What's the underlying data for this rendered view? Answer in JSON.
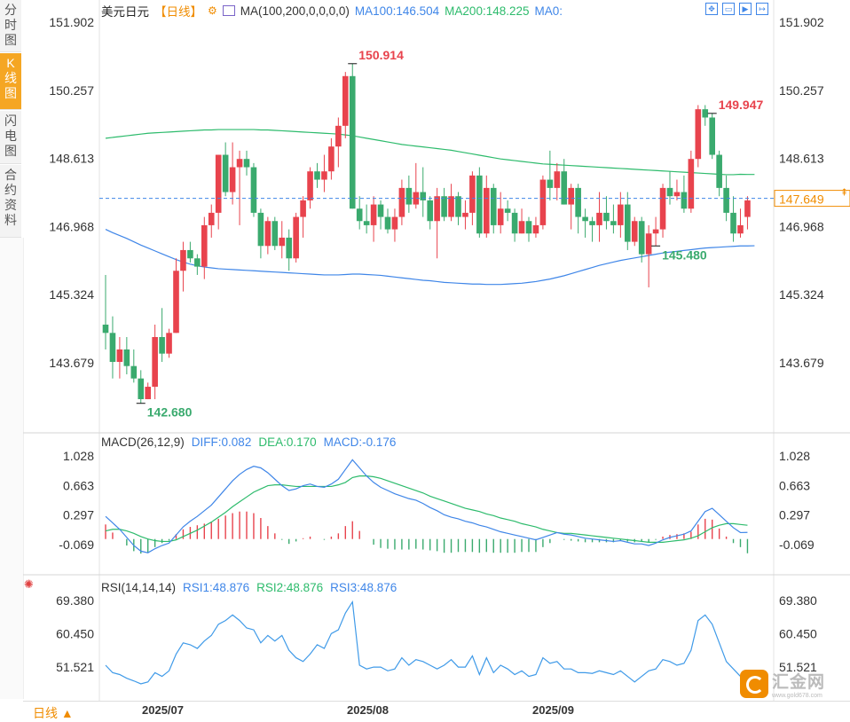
{
  "sidebar": {
    "tabs": [
      "分时图",
      "K线图",
      "闪电图",
      "合约资料"
    ],
    "active_index": 1
  },
  "header": {
    "title": "美元日元",
    "period": "【日线】",
    "ma_label": "MA(100,200,0,0,0,0)",
    "ma100": "MA100:146.504",
    "ma200": "MA200:148.225",
    "ma0": "MA0:"
  },
  "toolbar": {
    "icons": [
      "move-icon",
      "zoom-out-icon",
      "play-icon",
      "forward-icon"
    ]
  },
  "macd_header": {
    "label": "MACD(26,12,9)",
    "diff": "DIFF:0.082",
    "dea": "DEA:0.170",
    "macd": "MACD:-0.176"
  },
  "rsi_header": {
    "label": "RSI(14,14,14)",
    "rsi1": "RSI1:48.876",
    "rsi2": "RSI2:48.876",
    "rsi3": "RSI3:48.876"
  },
  "bottom": {
    "period_button": "日线 ▲",
    "dates": [
      "2025/07",
      "2025/08",
      "2025/09"
    ]
  },
  "logo": {
    "text": "汇金网",
    "sub": "www.gold678.com"
  },
  "colors": {
    "up": "#e8434d",
    "down": "#3aaa6e",
    "ma100": "#3f86e8",
    "ma200": "#2dbb6c",
    "accent": "#f08c00"
  },
  "chart_data": [
    {
      "type": "candlestick",
      "title": "美元日元",
      "yticks": [
        151.902,
        150.257,
        148.613,
        146.968,
        145.324,
        143.679
      ],
      "ylim": [
        142.3,
        152.0
      ],
      "current_price": 147.649,
      "annotations": [
        {
          "label": "150.914",
          "type": "high",
          "index": 35
        },
        {
          "label": "149.947",
          "type": "high",
          "index": 86
        },
        {
          "label": "145.480",
          "type": "low",
          "index": 78
        },
        {
          "label": "142.680",
          "type": "low",
          "index": 5
        }
      ],
      "ohlc": [
        [
          144.6,
          145.8,
          144.0,
          144.4
        ],
        [
          144.4,
          144.8,
          143.3,
          143.7
        ],
        [
          143.7,
          144.3,
          143.3,
          144.0
        ],
        [
          144.0,
          144.3,
          143.4,
          143.6
        ],
        [
          143.6,
          144.0,
          143.2,
          143.3
        ],
        [
          143.3,
          143.5,
          142.7,
          142.8
        ],
        [
          142.8,
          143.2,
          142.8,
          143.1
        ],
        [
          143.1,
          144.6,
          142.8,
          144.3
        ],
        [
          144.3,
          145.0,
          143.7,
          143.9
        ],
        [
          143.9,
          144.5,
          143.8,
          144.4
        ],
        [
          144.4,
          146.2,
          144.4,
          145.9
        ],
        [
          145.9,
          146.6,
          145.4,
          146.4
        ],
        [
          146.4,
          146.6,
          146.1,
          146.2
        ],
        [
          146.2,
          146.3,
          145.8,
          146.0
        ],
        [
          146.0,
          147.2,
          145.7,
          147.0
        ],
        [
          147.0,
          147.5,
          146.7,
          147.3
        ],
        [
          147.3,
          148.7,
          146.9,
          148.7
        ],
        [
          148.7,
          149.0,
          147.7,
          147.8
        ],
        [
          147.8,
          149.0,
          147.5,
          148.4
        ],
        [
          148.4,
          148.8,
          147.0,
          148.6
        ],
        [
          148.6,
          148.8,
          148.2,
          148.4
        ],
        [
          148.4,
          148.5,
          147.2,
          147.3
        ],
        [
          147.3,
          147.4,
          146.2,
          146.5
        ],
        [
          146.5,
          147.2,
          146.3,
          147.1
        ],
        [
          147.1,
          147.2,
          146.4,
          146.5
        ],
        [
          146.5,
          147.1,
          146.2,
          146.7
        ],
        [
          146.7,
          146.9,
          145.9,
          146.2
        ],
        [
          146.2,
          147.3,
          146.1,
          147.2
        ],
        [
          147.2,
          147.7,
          146.7,
          147.6
        ],
        [
          147.6,
          148.4,
          147.4,
          148.3
        ],
        [
          148.3,
          148.5,
          147.9,
          148.1
        ],
        [
          148.1,
          148.7,
          147.8,
          148.3
        ],
        [
          148.3,
          149.1,
          148.1,
          148.9
        ],
        [
          148.9,
          149.6,
          148.4,
          149.4
        ],
        [
          149.4,
          150.7,
          149.1,
          150.6
        ],
        [
          150.6,
          150.9,
          147.4,
          147.4
        ],
        [
          147.4,
          147.7,
          146.9,
          147.1
        ],
        [
          147.1,
          147.5,
          146.8,
          147.0
        ],
        [
          147.0,
          147.7,
          146.6,
          147.5
        ],
        [
          147.5,
          147.6,
          146.9,
          147.2
        ],
        [
          147.2,
          147.4,
          146.8,
          146.9
        ],
        [
          146.9,
          147.4,
          146.6,
          147.2
        ],
        [
          147.2,
          148.1,
          147.0,
          147.9
        ],
        [
          147.9,
          148.2,
          147.3,
          147.5
        ],
        [
          147.5,
          148.5,
          147.4,
          147.8
        ],
        [
          147.8,
          148.4,
          147.2,
          147.6
        ],
        [
          147.6,
          147.7,
          146.9,
          147.1
        ],
        [
          147.1,
          147.9,
          146.2,
          147.7
        ],
        [
          147.7,
          147.9,
          147.1,
          147.2
        ],
        [
          147.2,
          148.0,
          147.1,
          147.7
        ],
        [
          147.7,
          147.8,
          147.0,
          147.2
        ],
        [
          147.2,
          147.6,
          146.9,
          147.3
        ],
        [
          147.3,
          148.3,
          147.0,
          148.2
        ],
        [
          148.2,
          148.4,
          146.7,
          146.8
        ],
        [
          146.8,
          148.2,
          146.7,
          147.9
        ],
        [
          147.9,
          148.0,
          146.8,
          147.0
        ],
        [
          147.0,
          147.8,
          146.8,
          147.4
        ],
        [
          147.4,
          147.6,
          147.1,
          147.3
        ],
        [
          147.3,
          147.4,
          146.6,
          146.8
        ],
        [
          146.8,
          147.4,
          146.8,
          147.1
        ],
        [
          147.1,
          147.2,
          146.6,
          146.8
        ],
        [
          146.8,
          147.2,
          146.7,
          147.0
        ],
        [
          147.0,
          148.2,
          146.9,
          148.1
        ],
        [
          148.1,
          148.8,
          147.6,
          147.9
        ],
        [
          147.9,
          148.5,
          147.6,
          148.3
        ],
        [
          148.3,
          148.6,
          147.5,
          147.5
        ],
        [
          147.5,
          148.0,
          146.9,
          147.9
        ],
        [
          147.9,
          148.0,
          146.8,
          147.2
        ],
        [
          147.2,
          147.4,
          146.7,
          147.1
        ],
        [
          147.1,
          147.2,
          146.6,
          147.0
        ],
        [
          147.0,
          147.8,
          146.6,
          147.3
        ],
        [
          147.3,
          147.7,
          146.9,
          147.1
        ],
        [
          147.1,
          147.5,
          146.8,
          147.0
        ],
        [
          147.0,
          147.8,
          146.7,
          147.5
        ],
        [
          147.5,
          147.8,
          146.4,
          146.6
        ],
        [
          146.6,
          147.2,
          146.5,
          147.1
        ],
        [
          147.1,
          147.2,
          146.1,
          146.3
        ],
        [
          146.3,
          147.0,
          145.5,
          146.8
        ],
        [
          146.8,
          147.2,
          146.5,
          146.9
        ],
        [
          146.9,
          148.0,
          146.7,
          147.9
        ],
        [
          147.9,
          148.3,
          147.5,
          147.7
        ],
        [
          147.7,
          148.1,
          147.6,
          147.8
        ],
        [
          147.8,
          148.2,
          147.3,
          147.4
        ],
        [
          147.4,
          148.8,
          147.3,
          148.6
        ],
        [
          148.6,
          149.9,
          148.4,
          149.8
        ],
        [
          149.8,
          149.9,
          149.4,
          149.6
        ],
        [
          149.6,
          149.7,
          148.6,
          148.7
        ],
        [
          148.7,
          148.8,
          147.7,
          147.9
        ],
        [
          147.9,
          148.2,
          147.1,
          147.3
        ],
        [
          147.3,
          147.7,
          146.6,
          146.8
        ],
        [
          146.8,
          147.4,
          146.7,
          147.0
        ],
        [
          147.2,
          147.7,
          146.9,
          147.6
        ]
      ],
      "ma100": [
        146.9,
        146.82,
        146.75,
        146.68,
        146.6,
        146.52,
        146.45,
        146.38,
        146.31,
        146.24,
        146.17,
        146.11,
        146.06,
        146.02,
        145.99,
        145.97,
        145.95,
        145.94,
        145.93,
        145.92,
        145.91,
        145.9,
        145.89,
        145.88,
        145.87,
        145.86,
        145.85,
        145.84,
        145.83,
        145.82,
        145.81,
        145.8,
        145.8,
        145.8,
        145.81,
        145.82,
        145.82,
        145.81,
        145.8,
        145.79,
        145.77,
        145.75,
        145.73,
        145.71,
        145.69,
        145.67,
        145.66,
        145.64,
        145.62,
        145.61,
        145.6,
        145.59,
        145.58,
        145.58,
        145.57,
        145.57,
        145.57,
        145.58,
        145.59,
        145.6,
        145.62,
        145.64,
        145.67,
        145.7,
        145.74,
        145.78,
        145.83,
        145.88,
        145.93,
        145.98,
        146.03,
        146.07,
        146.11,
        146.15,
        146.18,
        146.21,
        146.24,
        146.27,
        146.3,
        146.33,
        146.35,
        146.37,
        146.39,
        146.41,
        146.43,
        146.45,
        146.46,
        146.47,
        146.48,
        146.49,
        146.5,
        146.5,
        146.504
      ],
      "ma200": [
        149.1,
        149.12,
        149.14,
        149.16,
        149.18,
        149.2,
        149.22,
        149.23,
        149.24,
        149.25,
        149.26,
        149.27,
        149.28,
        149.29,
        149.3,
        149.3,
        149.31,
        149.31,
        149.31,
        149.31,
        149.31,
        149.31,
        149.3,
        149.3,
        149.29,
        149.28,
        149.27,
        149.26,
        149.25,
        149.24,
        149.23,
        149.22,
        149.21,
        149.2,
        149.18,
        149.16,
        149.13,
        149.1,
        149.07,
        149.04,
        149.01,
        148.98,
        148.95,
        148.93,
        148.91,
        148.89,
        148.87,
        148.85,
        148.83,
        148.81,
        148.78,
        148.75,
        148.72,
        148.69,
        148.66,
        148.63,
        148.6,
        148.58,
        148.56,
        148.54,
        148.52,
        148.5,
        148.48,
        148.47,
        148.46,
        148.45,
        148.44,
        148.43,
        148.42,
        148.41,
        148.4,
        148.39,
        148.38,
        148.37,
        148.36,
        148.35,
        148.34,
        148.33,
        148.32,
        148.31,
        148.3,
        148.29,
        148.28,
        148.27,
        148.26,
        148.25,
        148.24,
        148.23,
        148.22,
        148.22,
        148.23,
        148.225,
        148.225
      ]
    },
    {
      "type": "line",
      "title": "MACD(26,12,9)",
      "yticks": [
        1.028,
        0.663,
        0.297,
        -0.069
      ],
      "ylim": [
        -0.4,
        1.1
      ],
      "diff": [
        0.28,
        0.2,
        0.12,
        0.02,
        -0.08,
        -0.15,
        -0.17,
        -0.12,
        -0.08,
        -0.05,
        0.05,
        0.15,
        0.22,
        0.28,
        0.35,
        0.42,
        0.52,
        0.62,
        0.72,
        0.8,
        0.86,
        0.9,
        0.88,
        0.82,
        0.74,
        0.66,
        0.6,
        0.62,
        0.66,
        0.68,
        0.65,
        0.64,
        0.68,
        0.74,
        0.86,
        0.98,
        0.88,
        0.78,
        0.7,
        0.64,
        0.6,
        0.56,
        0.53,
        0.5,
        0.48,
        0.44,
        0.39,
        0.35,
        0.3,
        0.27,
        0.25,
        0.22,
        0.2,
        0.17,
        0.15,
        0.12,
        0.09,
        0.07,
        0.05,
        0.03,
        0.01,
        -0.01,
        0.02,
        0.05,
        0.08,
        0.06,
        0.05,
        0.03,
        0.01,
        0.0,
        -0.01,
        -0.02,
        -0.03,
        -0.02,
        -0.04,
        -0.06,
        -0.06,
        -0.08,
        -0.05,
        -0.01,
        0.02,
        0.04,
        0.06,
        0.1,
        0.22,
        0.34,
        0.38,
        0.3,
        0.22,
        0.14,
        0.08,
        0.082
      ],
      "dea": [
        0.1,
        0.12,
        0.12,
        0.1,
        0.07,
        0.03,
        0.0,
        -0.02,
        -0.03,
        -0.03,
        -0.01,
        0.03,
        0.07,
        0.11,
        0.16,
        0.21,
        0.27,
        0.33,
        0.4,
        0.46,
        0.52,
        0.58,
        0.62,
        0.66,
        0.67,
        0.67,
        0.66,
        0.65,
        0.65,
        0.65,
        0.65,
        0.65,
        0.65,
        0.67,
        0.7,
        0.76,
        0.78,
        0.78,
        0.77,
        0.75,
        0.72,
        0.69,
        0.66,
        0.63,
        0.6,
        0.57,
        0.53,
        0.5,
        0.47,
        0.44,
        0.41,
        0.38,
        0.36,
        0.34,
        0.31,
        0.29,
        0.26,
        0.24,
        0.22,
        0.19,
        0.17,
        0.15,
        0.12,
        0.1,
        0.08,
        0.07,
        0.07,
        0.06,
        0.05,
        0.04,
        0.03,
        0.02,
        0.01,
        0.0,
        -0.01,
        -0.02,
        -0.03,
        -0.04,
        -0.04,
        -0.04,
        -0.03,
        -0.02,
        -0.01,
        0.01,
        0.04,
        0.09,
        0.14,
        0.17,
        0.19,
        0.19,
        0.18,
        0.17
      ],
      "macd": [
        0.18,
        0.08,
        0.0,
        -0.08,
        -0.15,
        -0.18,
        -0.17,
        -0.1,
        -0.05,
        -0.02,
        0.06,
        0.12,
        0.15,
        0.17,
        0.19,
        0.21,
        0.25,
        0.29,
        0.32,
        0.34,
        0.34,
        0.32,
        0.26,
        0.16,
        0.07,
        -0.01,
        -0.06,
        -0.03,
        0.01,
        0.03,
        0.0,
        -0.01,
        0.03,
        0.07,
        0.16,
        0.22,
        0.1,
        0.0,
        -0.07,
        -0.11,
        -0.12,
        -0.13,
        -0.13,
        -0.13,
        -0.12,
        -0.13,
        -0.14,
        -0.15,
        -0.17,
        -0.17,
        -0.16,
        -0.16,
        -0.16,
        -0.17,
        -0.16,
        -0.17,
        -0.17,
        -0.17,
        -0.17,
        -0.16,
        -0.16,
        -0.16,
        -0.1,
        -0.05,
        0.0,
        -0.01,
        -0.02,
        -0.03,
        -0.04,
        -0.04,
        -0.04,
        -0.04,
        -0.04,
        -0.02,
        -0.03,
        -0.04,
        -0.03,
        -0.04,
        -0.01,
        0.03,
        0.05,
        0.06,
        0.07,
        0.09,
        0.18,
        0.25,
        0.24,
        0.13,
        0.03,
        -0.05,
        -0.1,
        -0.176
      ]
    },
    {
      "type": "line",
      "title": "RSI(14,14,14)",
      "yticks": [
        69.38,
        60.45,
        51.521
      ],
      "ylim": [
        47.0,
        71.0
      ],
      "rsi": [
        52.0,
        50.0,
        49.5,
        48.5,
        47.8,
        47.0,
        47.5,
        50.0,
        49.0,
        50.5,
        55.0,
        58.0,
        57.5,
        56.5,
        58.5,
        60.0,
        63.0,
        64.0,
        65.5,
        64.0,
        62.0,
        61.5,
        58.0,
        60.0,
        58.5,
        60.0,
        56.0,
        54.0,
        53.0,
        55.0,
        57.5,
        56.5,
        60.5,
        61.5,
        66.0,
        69.0,
        52.0,
        51.0,
        51.5,
        51.5,
        50.5,
        51.0,
        54.0,
        52.0,
        53.5,
        53.0,
        52.0,
        51.0,
        52.0,
        53.5,
        51.5,
        51.5,
        54.5,
        49.5,
        54.0,
        50.0,
        52.0,
        51.0,
        49.5,
        50.5,
        49.0,
        49.5,
        54.0,
        52.5,
        53.0,
        51.0,
        51.0,
        50.0,
        50.0,
        49.8,
        50.5,
        50.0,
        49.5,
        50.5,
        49.0,
        47.5,
        49.0,
        50.5,
        51.0,
        53.5,
        53.0,
        52.0,
        52.5,
        56.0,
        64.0,
        65.5,
        63.0,
        58.0,
        53.0,
        51.0,
        49.0,
        48.9
      ]
    }
  ]
}
